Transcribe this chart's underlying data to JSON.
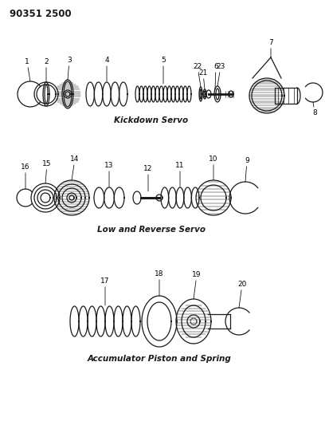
{
  "title_code": "90351 2500",
  "section1_label": "Kickdown Servo",
  "section2_label": "Low and Reverse Servo",
  "section3_label": "Accumulator Piston and Spring",
  "bg_color": "#ffffff",
  "line_color": "#1a1a1a",
  "font_color": "#1a1a1a",
  "title_fontsize": 8.5,
  "label_fontsize": 6.5,
  "section_label_fontsize": 7.5,
  "fig_w": 4.08,
  "fig_h": 5.33,
  "dpi": 100
}
